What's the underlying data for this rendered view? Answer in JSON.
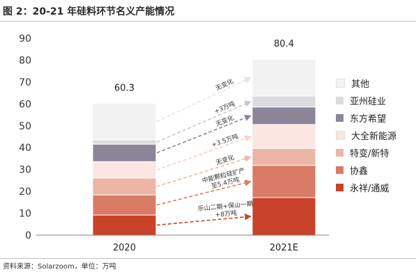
{
  "figure": {
    "title": "图 2：20-21 年硅料环节名义产能情况",
    "source": "资料来源：Solarzoom，单位：万吨"
  },
  "chart_data": {
    "type": "bar",
    "stacked": true,
    "categories": [
      "2020",
      "2021E"
    ],
    "ylim": [
      0,
      90
    ],
    "yticks": [
      0,
      10,
      20,
      30,
      40,
      50,
      60,
      70,
      80,
      90
    ],
    "grid": false,
    "legend_position": "right",
    "series": [
      {
        "name": "永祥/通威",
        "color": "#c8432a",
        "values": [
          9.2,
          17.2
        ]
      },
      {
        "name": "协鑫",
        "color": "#d97b66",
        "values": [
          9.2,
          14.7
        ]
      },
      {
        "name": "特变/新特",
        "color": "#edb5a6",
        "values": [
          7.7,
          7.7
        ]
      },
      {
        "name": "大全新能源",
        "color": "#fbe6e1",
        "values": [
          7.5,
          11.0
        ]
      },
      {
        "name": "东方希望",
        "color": "#8c8598",
        "values": [
          8.0,
          8.0
        ]
      },
      {
        "name": "亚州硅业",
        "color": "#dcdce0",
        "values": [
          2.0,
          5.0
        ]
      },
      {
        "name": "其他",
        "color": "#f2f2f2",
        "values": [
          16.7,
          16.8
        ]
      }
    ],
    "totals": [
      "60.3",
      "80.4"
    ],
    "annotations": [
      {
        "text": [
          "乐山二期+保山一期",
          "+8万吨"
        ],
        "color": "#c8432a",
        "from": {
          "series": 0,
          "bar": 0
        },
        "to": {
          "series": 0,
          "bar": 1
        }
      },
      {
        "text": [
          "中能颗粒硅扩产",
          "至5.4万吨"
        ],
        "color": "#d97b66",
        "from": {
          "series": 1,
          "bar": 0
        },
        "to": {
          "series": 1,
          "bar": 1
        }
      },
      {
        "text": [
          "无变化"
        ],
        "color": "#edb5a6",
        "from": {
          "series": 2,
          "bar": 0
        },
        "to": {
          "series": 2,
          "bar": 1
        }
      },
      {
        "text": [
          "+3.5万吨"
        ],
        "color": "#f6cfc5",
        "from": {
          "series": 3,
          "bar": 0
        },
        "to": {
          "series": 3,
          "bar": 1
        }
      },
      {
        "text": [
          "无变化"
        ],
        "color": "#8c8598",
        "from": {
          "series": 4,
          "bar": 0
        },
        "to": {
          "series": 4,
          "bar": 1
        }
      },
      {
        "text": [
          "+3万吨"
        ],
        "color": "#c8c8cc",
        "from": {
          "series": 5,
          "bar": 0
        },
        "to": {
          "series": 5,
          "bar": 1
        }
      },
      {
        "text": [
          "无变化"
        ],
        "color": "#e4e4e4",
        "from": {
          "series": 6,
          "bar": 0
        },
        "to": {
          "series": 6,
          "bar": 1
        }
      }
    ]
  }
}
